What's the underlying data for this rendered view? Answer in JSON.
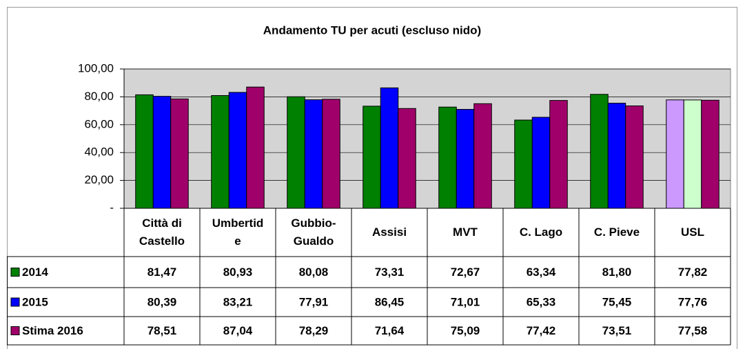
{
  "chart_data": {
    "type": "bar",
    "title": "Andamento TU per acuti (escluso nido)",
    "categories": [
      "Città di Castello",
      "Umbertide",
      "Gubbio-Gualdo",
      "Assisi",
      "MVT",
      "C. Lago",
      "C. Pieve",
      "USL"
    ],
    "series": [
      {
        "name": "2014",
        "color": "#008000",
        "colors": [
          "#008000",
          "#008000",
          "#008000",
          "#008000",
          "#008000",
          "#008000",
          "#008000",
          "#cc99ff"
        ],
        "values": [
          81.47,
          80.93,
          80.08,
          73.31,
          72.67,
          63.34,
          81.8,
          77.82
        ],
        "value_labels": [
          "81,47",
          "80,93",
          "80,08",
          "73,31",
          "72,67",
          "63,34",
          "81,80",
          "77,82"
        ]
      },
      {
        "name": "2015",
        "color": "#0000ff",
        "colors": [
          "#0000ff",
          "#0000ff",
          "#0000ff",
          "#0000ff",
          "#0000ff",
          "#0000ff",
          "#0000ff",
          "#ccffcc"
        ],
        "values": [
          80.39,
          83.21,
          77.91,
          86.45,
          71.01,
          65.33,
          75.45,
          77.76
        ],
        "value_labels": [
          "80,39",
          "83,21",
          "77,91",
          "86,45",
          "71,01",
          "65,33",
          "75,45",
          "77,76"
        ]
      },
      {
        "name": "Stima 2016",
        "color": "#a0006a",
        "colors": [
          "#a0006a",
          "#a0006a",
          "#a0006a",
          "#a0006a",
          "#a0006a",
          "#a0006a",
          "#a0006a",
          "#a0006a"
        ],
        "values": [
          78.51,
          87.04,
          78.29,
          71.64,
          75.09,
          77.42,
          73.51,
          77.58
        ],
        "value_labels": [
          "78,51",
          "87,04",
          "78,29",
          "71,64",
          "75,09",
          "77,42",
          "73,51",
          "77,58"
        ]
      }
    ],
    "ylim": [
      0,
      100
    ],
    "yticks": [
      {
        "value": 0,
        "label": "-"
      },
      {
        "value": 20,
        "label": "20,00"
      },
      {
        "value": 40,
        "label": "40,00"
      },
      {
        "value": 60,
        "label": "60,00"
      },
      {
        "value": 80,
        "label": "80,00"
      },
      {
        "value": 100,
        "label": "100,00"
      }
    ],
    "grid": true
  }
}
